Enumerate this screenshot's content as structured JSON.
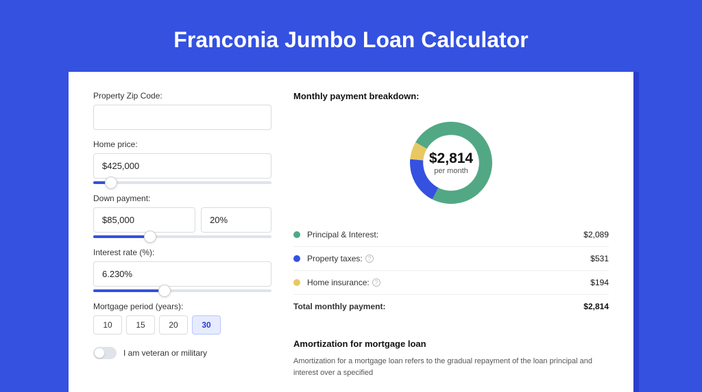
{
  "title": "Franconia Jumbo Loan Calculator",
  "colors": {
    "page_bg": "#3451e0",
    "card_bg": "#ffffff",
    "card_shadow": "#2a3ecc",
    "slider_fill": "#3451e0",
    "border": "#d8dbe0"
  },
  "form": {
    "zip": {
      "label": "Property Zip Code:",
      "value": ""
    },
    "home_price": {
      "label": "Home price:",
      "value": "$425,000",
      "slider_pct": 10
    },
    "down_payment": {
      "label": "Down payment:",
      "amount": "$85,000",
      "percent": "20%",
      "slider_pct": 32
    },
    "interest_rate": {
      "label": "Interest rate (%):",
      "value": "6.230%",
      "slider_pct": 40
    },
    "mortgage_period": {
      "label": "Mortgage period (years):",
      "options": [
        "10",
        "15",
        "20",
        "30"
      ],
      "selected": "30"
    },
    "veteran": {
      "label": "I am veteran or military",
      "checked": false
    }
  },
  "breakdown": {
    "title": "Monthly payment breakdown:",
    "donut": {
      "amount": "$2,814",
      "sub": "per month",
      "slices": [
        {
          "key": "principal_interest",
          "pct": 74.2,
          "color": "#52a885"
        },
        {
          "key": "property_taxes",
          "pct": 18.9,
          "color": "#3451e0"
        },
        {
          "key": "home_insurance",
          "pct": 6.9,
          "color": "#e8c862"
        }
      ],
      "thickness_ratio": 0.32
    },
    "items": [
      {
        "label": "Principal & Interest:",
        "value": "$2,089",
        "color": "#52a885",
        "info": false
      },
      {
        "label": "Property taxes:",
        "value": "$531",
        "color": "#3451e0",
        "info": true
      },
      {
        "label": "Home insurance:",
        "value": "$194",
        "color": "#e8c862",
        "info": true
      }
    ],
    "total": {
      "label": "Total monthly payment:",
      "value": "$2,814"
    }
  },
  "amortization": {
    "title": "Amortization for mortgage loan",
    "text": "Amortization for a mortgage loan refers to the gradual repayment of the loan principal and interest over a specified"
  }
}
